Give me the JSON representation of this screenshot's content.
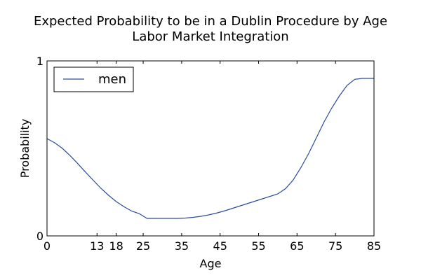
{
  "chart_data": {
    "type": "line",
    "title": "Expected Probability to be in a Dublin Procedure by Age",
    "subtitle": "Labor Market Integration",
    "xlabel": "Age",
    "ylabel": "Probability",
    "xlim": [
      0,
      85
    ],
    "ylim": [
      0,
      1
    ],
    "xticks": [
      0,
      13,
      18,
      25,
      35,
      45,
      55,
      65,
      75,
      85
    ],
    "yticks": [
      0,
      1
    ],
    "grid": false,
    "legend": {
      "position": "top-left",
      "entries": [
        "men"
      ]
    },
    "series": [
      {
        "name": "men",
        "color": "#2b4c9a",
        "x": [
          0,
          2,
          4,
          6,
          8,
          10,
          12,
          14,
          16,
          18,
          20,
          22,
          24,
          26,
          28,
          30,
          32,
          34,
          36,
          38,
          40,
          42,
          44,
          46,
          48,
          50,
          52,
          54,
          56,
          58,
          60,
          62,
          64,
          66,
          68,
          70,
          72,
          74,
          76,
          78,
          80,
          82,
          85
        ],
        "y": [
          0.556,
          0.532,
          0.5,
          0.459,
          0.413,
          0.365,
          0.318,
          0.272,
          0.232,
          0.196,
          0.167,
          0.142,
          0.127,
          0.1,
          0.1,
          0.1,
          0.1,
          0.1,
          0.102,
          0.106,
          0.112,
          0.12,
          0.13,
          0.142,
          0.156,
          0.17,
          0.184,
          0.198,
          0.212,
          0.226,
          0.24,
          0.27,
          0.32,
          0.39,
          0.47,
          0.56,
          0.65,
          0.73,
          0.8,
          0.86,
          0.895,
          0.9,
          0.9
        ]
      }
    ]
  }
}
